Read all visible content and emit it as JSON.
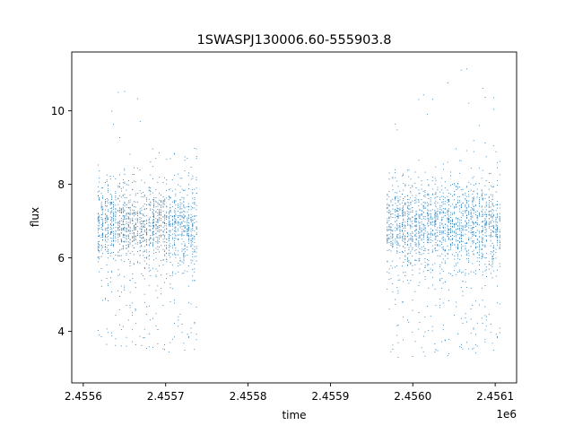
{
  "chart_data": {
    "type": "scatter",
    "title": "1SWASPJ130006.60-555903.8",
    "xlabel": "time",
    "ylabel": "flux",
    "x_offset_label": "1e6",
    "xlim": [
      2455586,
      2456126
    ],
    "ylim": [
      2.6,
      11.6
    ],
    "x_ticks": [
      2455600,
      2455700,
      2455800,
      2455900,
      2456000,
      2456100
    ],
    "x_tick_labels": [
      "2.4556",
      "2.4557",
      "2.4558",
      "2.4559",
      "2.4560",
      "2.4561"
    ],
    "y_ticks": [
      4,
      6,
      8,
      10
    ],
    "y_tick_labels": [
      "4",
      "6",
      "8",
      "10"
    ],
    "grid": false,
    "marker_color": "#1f77b4",
    "series": [
      {
        "segments": [
          {
            "x_start": 2455616,
            "x_end": 2455676,
            "y_center": 6.9,
            "y_spread": 1.0,
            "y_min": 3.6,
            "y_max": 10.7
          },
          {
            "x_start": 2455676,
            "x_end": 2455738,
            "y_center": 6.9,
            "y_spread": 1.0,
            "y_min": 3.4,
            "y_max": 9.0
          },
          {
            "x_start": 2455968,
            "x_end": 2456025,
            "y_center": 6.9,
            "y_spread": 1.1,
            "y_min": 3.3,
            "y_max": 10.8
          },
          {
            "x_start": 2456025,
            "x_end": 2456106,
            "y_center": 6.9,
            "y_spread": 1.1,
            "y_min": 2.9,
            "y_max": 11.2
          }
        ]
      }
    ]
  }
}
